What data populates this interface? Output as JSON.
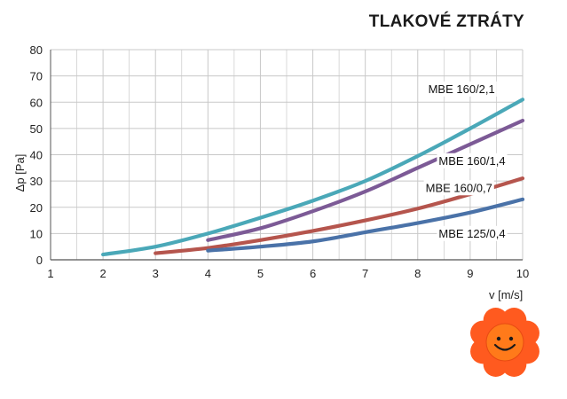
{
  "chart_data": {
    "type": "line",
    "title": "TLAKOVÉ ZTRÁTY",
    "xlabel": "v [m/s]",
    "ylabel": "Δp [Pa]",
    "xlim": [
      1,
      10
    ],
    "ylim": [
      0,
      80
    ],
    "x_ticks": [
      "1",
      "2",
      "3",
      "4",
      "5",
      "6",
      "7",
      "8",
      "9",
      "10"
    ],
    "y_ticks": [
      "0",
      "10",
      "20",
      "30",
      "40",
      "50",
      "60",
      "70",
      "80"
    ],
    "grid": true,
    "series": [
      {
        "name": "MBE  160/2,1",
        "color": "#4aa8b8",
        "x": [
          2,
          3,
          4,
          5,
          6,
          7,
          8,
          9,
          10
        ],
        "y": [
          2,
          5,
          10,
          16,
          22.5,
          30,
          39.5,
          50,
          61
        ]
      },
      {
        "name": "MBE 160/1,4",
        "color": "#7c5a96",
        "x": [
          4,
          5,
          6,
          7,
          8,
          9,
          10
        ],
        "y": [
          7.5,
          12,
          18.5,
          26,
          35,
          44,
          53
        ]
      },
      {
        "name": "MBE 160/0,7",
        "color": "#b5554d",
        "x": [
          3,
          4,
          5,
          6,
          7,
          8,
          9,
          10
        ],
        "y": [
          2.5,
          4.5,
          7.5,
          11,
          15,
          19.5,
          25,
          31
        ]
      },
      {
        "name": "MBE 125/0,4",
        "color": "#4a72a8",
        "x": [
          4,
          5,
          6,
          7,
          8,
          9,
          10
        ],
        "y": [
          3.5,
          5,
          7,
          10.5,
          14,
          18,
          23
        ]
      }
    ]
  },
  "mascot": {
    "icon": "smiling-flower-icon",
    "petal_color": "#ff5a1f",
    "center_color": "#ff7a1a"
  }
}
